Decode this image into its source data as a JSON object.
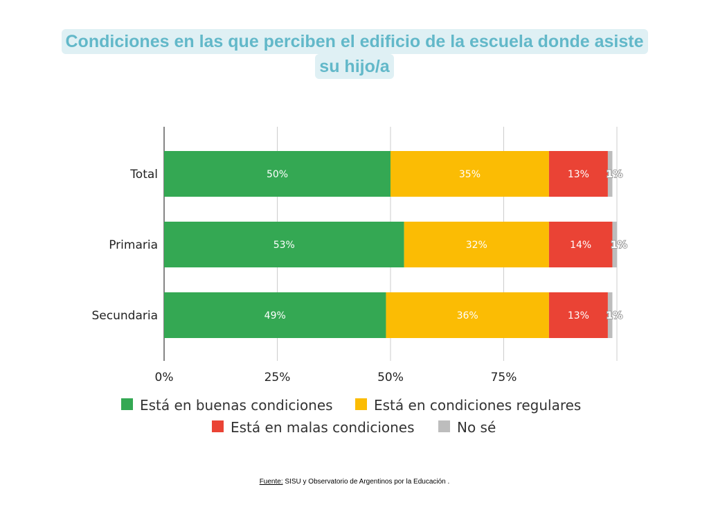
{
  "title_lines": [
    "Condiciones en las que perciben el edificio de la escuela donde asiste",
    "su hijo/a"
  ],
  "source": {
    "label": "Fuente:",
    "text": " SISU y Observatorio de Argentinos por la Educación ."
  },
  "chart_data": {
    "type": "bar",
    "orientation": "horizontal",
    "stacked": true,
    "title": "Condiciones en las que perciben el edificio de la escuela donde asiste su hijo/a",
    "categories": [
      "Total",
      "Primaria",
      "Secundaria"
    ],
    "series": [
      {
        "name": "Está en buenas condiciones",
        "color": "#34a853",
        "values": [
          50,
          53,
          49
        ],
        "labels": [
          "50%",
          "53%",
          "49%"
        ]
      },
      {
        "name": "Está en condiciones regulares",
        "color": "#fbbc04",
        "values": [
          35,
          32,
          36
        ],
        "labels": [
          "35%",
          "32%",
          "36%"
        ]
      },
      {
        "name": "Está en malas condiciones",
        "color": "#ea4335",
        "values": [
          13,
          14,
          13
        ],
        "labels": [
          "13%",
          "14%",
          "13%"
        ]
      },
      {
        "name": "No sé",
        "color": "#bdbdbd",
        "values": [
          1,
          1,
          1
        ],
        "labels": [
          "1%",
          "1%",
          "1%"
        ]
      }
    ],
    "xlim": [
      0,
      100
    ],
    "x_ticks": [
      0,
      25,
      50,
      75,
      100
    ],
    "x_tick_labels": [
      "0%",
      "25%",
      "50%",
      "75%",
      ""
    ],
    "grid": true,
    "legend_position": "bottom"
  }
}
